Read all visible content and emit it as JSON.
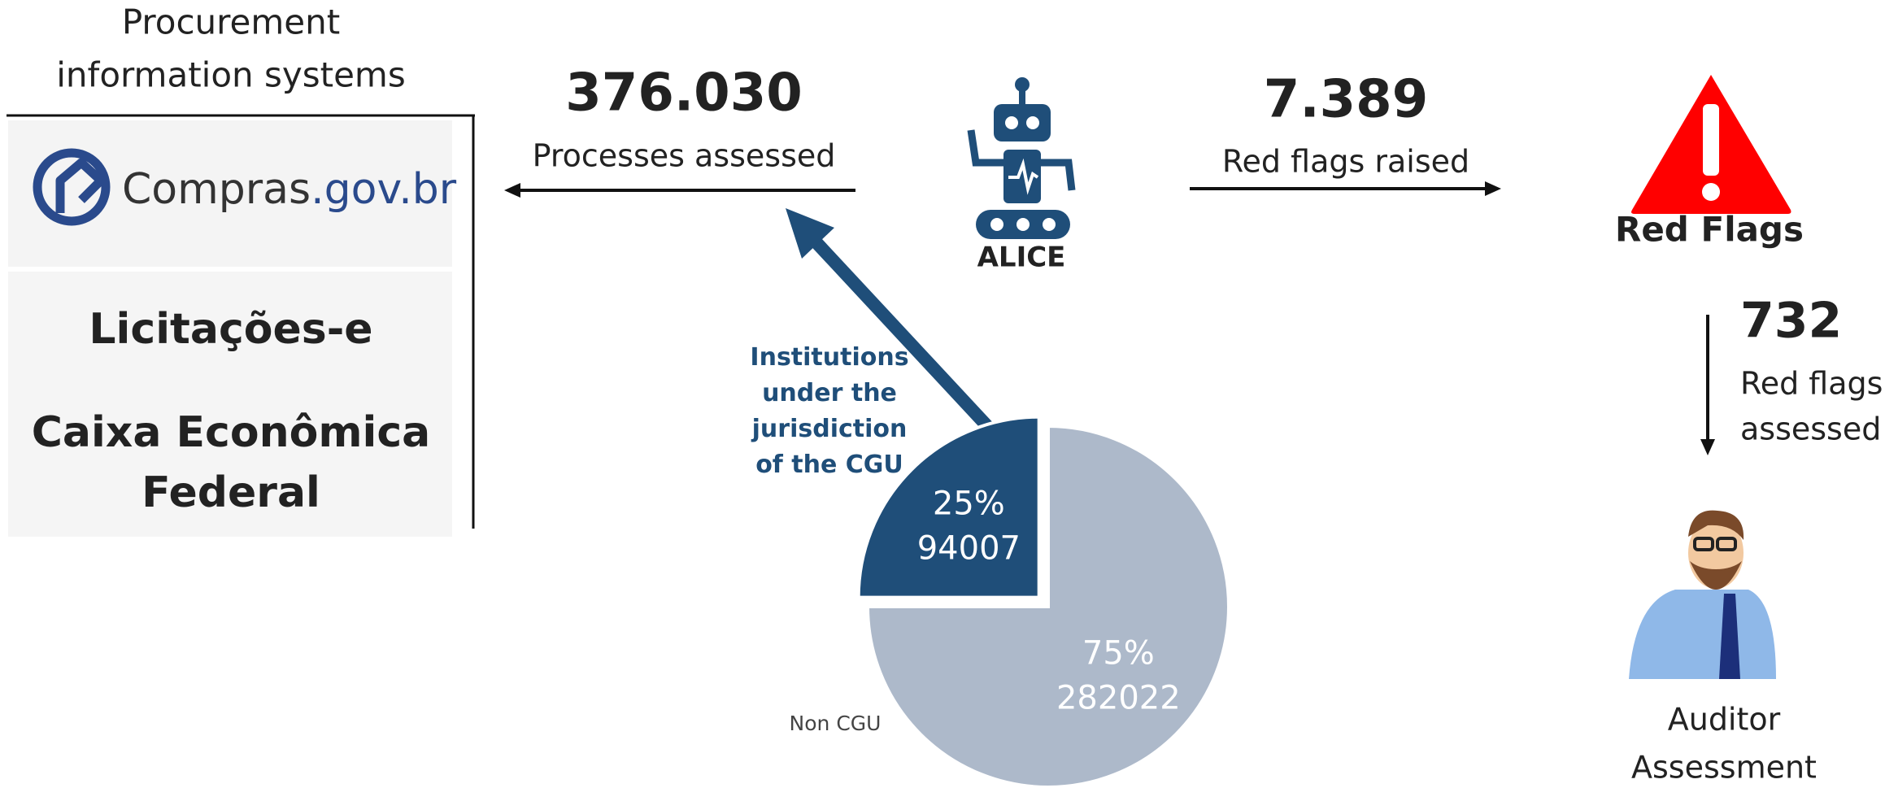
{
  "sources": {
    "title_lines": [
      "Procurement",
      "information systems"
    ],
    "logo": [
      "Compras",
      ".gov.br"
    ],
    "systems": [
      "Licitações-e",
      "Caixa Econômica",
      "Federal"
    ]
  },
  "processes": {
    "value": "376.030",
    "label": "Processes assessed"
  },
  "robot": "ALICE",
  "raised": {
    "value": "7.389",
    "label": "Red flags raised"
  },
  "red_flags": "Red Flags",
  "assessed": {
    "value": "732",
    "label_lines": [
      "Red flags",
      "assessed"
    ]
  },
  "auditor_lines": [
    "Auditor",
    "Assessment"
  ],
  "chart_data": {
    "type": "pie",
    "categories": [
      "Non CGU",
      "Institutions under the jurisdiction of the CGU"
    ],
    "values": [
      75,
      25
    ],
    "value_labels": [
      "75%",
      "25%"
    ],
    "counts": [
      282022,
      94007
    ],
    "colors": [
      "#adb9ca",
      "#1f4e79"
    ]
  }
}
